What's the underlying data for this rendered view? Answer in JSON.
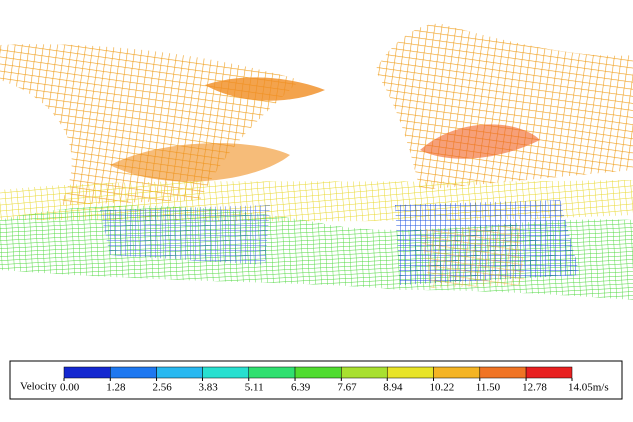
{
  "legend": {
    "label": "Velocity",
    "ticks": [
      {
        "value": 0,
        "label": "0.00"
      },
      {
        "value": 1.28,
        "label": "1.28"
      },
      {
        "value": 2.56,
        "label": "2.56"
      },
      {
        "value": 3.83,
        "label": "3.83"
      },
      {
        "value": 5.11,
        "label": "5.11"
      },
      {
        "value": 6.39,
        "label": "6.39"
      },
      {
        "value": 7.67,
        "label": "7.67"
      },
      {
        "value": 8.94,
        "label": "8.94"
      },
      {
        "value": 10.22,
        "label": "10.22"
      },
      {
        "value": 11.5,
        "label": "11.50"
      },
      {
        "value": 12.78,
        "label": "12.78"
      },
      {
        "value": 14.05,
        "label": "14.05m/s"
      }
    ],
    "colors": [
      "#1428d0",
      "#1e78f0",
      "#28b8f0",
      "#28e0d0",
      "#30e070",
      "#50dc30",
      "#a8e030",
      "#e8e428",
      "#f4b424",
      "#f07424",
      "#e82020"
    ]
  }
}
